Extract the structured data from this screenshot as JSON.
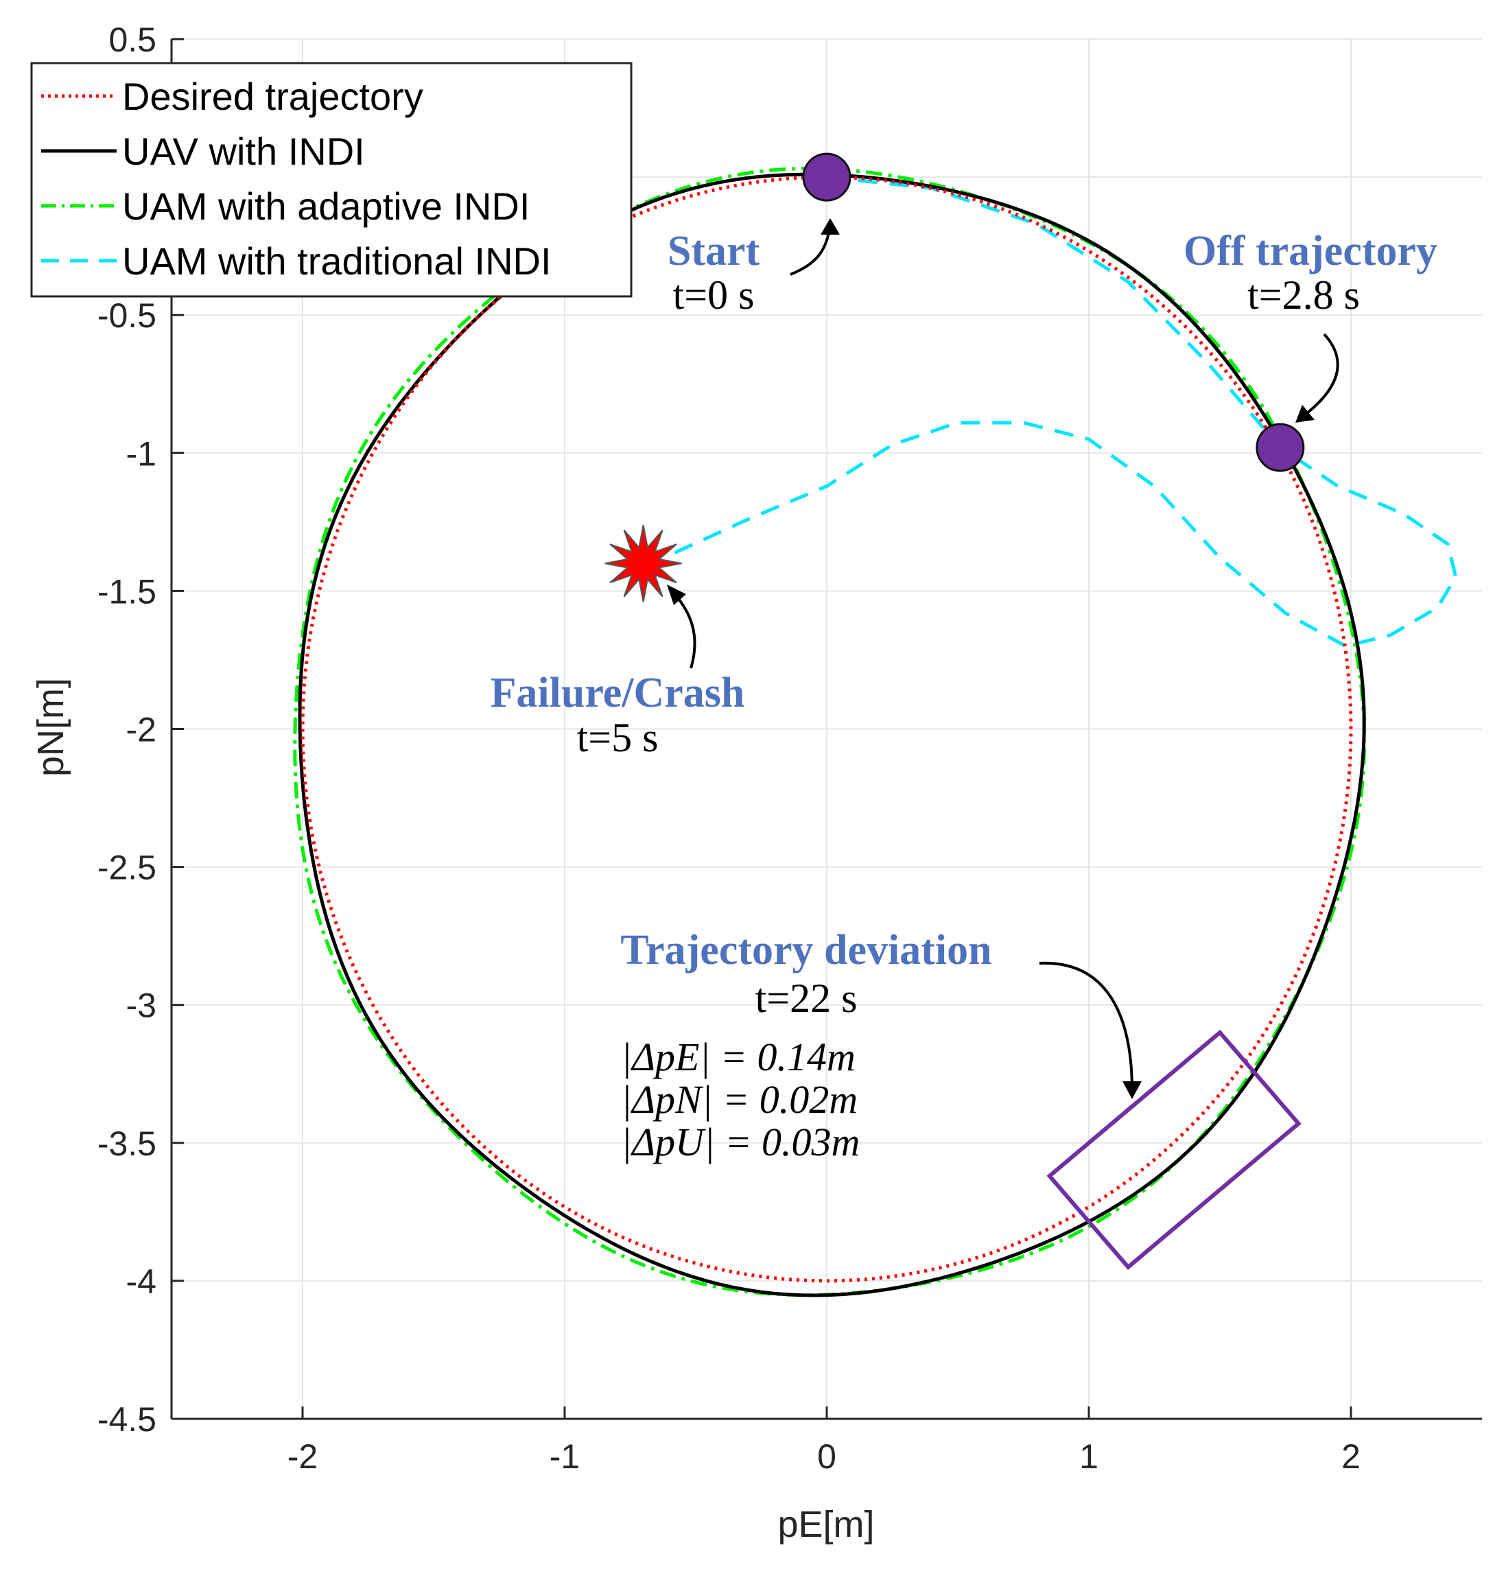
{
  "chart_data": {
    "type": "line",
    "xlabel": "pE[m]",
    "ylabel": "pN[m]",
    "xlim": [
      -2.5,
      2.5
    ],
    "ylim": [
      -4.5,
      0.5
    ],
    "xticks": [
      "-2",
      "-1",
      "0",
      "1",
      "2"
    ],
    "yticks": [
      "0.5",
      "0",
      "-0.5",
      "-1",
      "-1.5",
      "-2",
      "-2.5",
      "-3",
      "-3.5",
      "-4",
      "-4.5"
    ],
    "grid": true,
    "legend_position": "top-left",
    "series": [
      {
        "name": "Desired trajectory",
        "color": "#ff0000",
        "style": "dotted",
        "shape": "circle",
        "center": [
          0,
          -2
        ],
        "radius": 2
      },
      {
        "name": "UAV with INDI",
        "color": "#000000",
        "style": "solid",
        "shape": "circle",
        "center": [
          0.01,
          -2.015
        ],
        "radius": 2.03
      },
      {
        "name": "UAM with adaptive INDI",
        "color": "#00ee00",
        "style": "dashdot",
        "shape": "circle",
        "center": [
          0.0,
          -2.015
        ],
        "radius": 2.04
      },
      {
        "name": "UAM with traditional INDI",
        "color": "#00e5ff",
        "style": "dashed",
        "points": [
          [
            0,
            0.0
          ],
          [
            0.4,
            -0.04
          ],
          [
            0.8,
            -0.17
          ],
          [
            1.15,
            -0.38
          ],
          [
            1.45,
            -0.67
          ],
          [
            1.73,
            -0.98
          ],
          [
            1.95,
            -1.12
          ],
          [
            2.2,
            -1.22
          ],
          [
            2.37,
            -1.33
          ],
          [
            2.4,
            -1.45
          ],
          [
            2.33,
            -1.56
          ],
          [
            2.15,
            -1.66
          ],
          [
            1.98,
            -1.7
          ],
          [
            1.75,
            -1.58
          ],
          [
            1.5,
            -1.38
          ],
          [
            1.25,
            -1.12
          ],
          [
            1.0,
            -0.95
          ],
          [
            0.75,
            -0.89
          ],
          [
            0.5,
            -0.89
          ],
          [
            0.25,
            -0.97
          ],
          [
            0.0,
            -1.12
          ],
          [
            -0.3,
            -1.24
          ],
          [
            -0.6,
            -1.37
          ]
        ]
      }
    ],
    "markers": [
      {
        "name": "start",
        "x": 0,
        "y": 0.0,
        "color": "#7030a0"
      },
      {
        "name": "off-trajectory",
        "x": 1.73,
        "y": -0.98,
        "color": "#7030a0"
      },
      {
        "name": "crash",
        "x": -0.7,
        "y": -1.4,
        "color": "#ff0000"
      }
    ],
    "annotations": {
      "start_title": "Start",
      "start_time": "t=0 s",
      "off_title": "Off trajectory",
      "off_time": "t=2.8 s",
      "crash_title": "Failure/Crash",
      "crash_time": "t=5 s",
      "dev_title": "Trajectory deviation",
      "dev_time": "t=22 s",
      "dev_e": "|ΔpE| = 0.14m",
      "dev_n": "|ΔpN| = 0.02m",
      "dev_u": "|ΔpU| = 0.03m"
    },
    "deviation_box": {
      "color": "#7030a0",
      "corners": [
        [
          1.5,
          -3.1
        ],
        [
          1.8,
          -3.43
        ],
        [
          1.15,
          -3.95
        ],
        [
          0.85,
          -3.62
        ]
      ]
    }
  }
}
